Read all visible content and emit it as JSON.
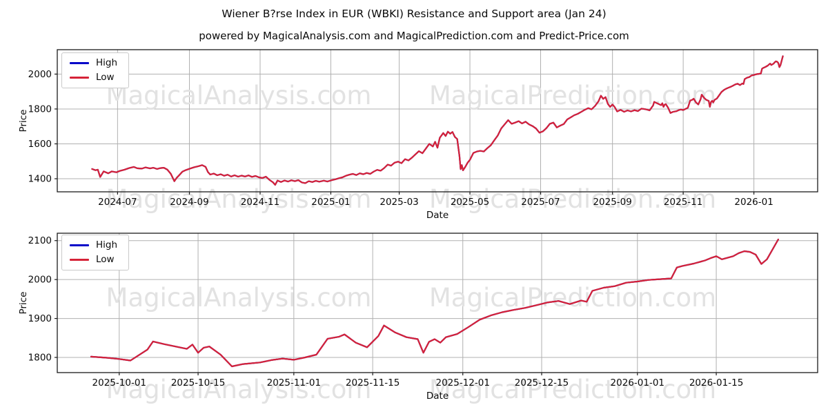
{
  "figure": {
    "title": "Wiener B?rse Index in EUR (WBKI) Resistance and Support area (Jan 24)",
    "subtitle": "powered by MagicalAnalysis.com and MagicalPrediction.com and Predict-Price.com",
    "background": "#ffffff"
  },
  "legend": {
    "high_label": "High",
    "low_label": "Low"
  },
  "colors": {
    "high": "#0202c8",
    "low": "#d62237",
    "grid": "#b0b0b0",
    "spine": "#1a1a1a",
    "tick_text": "#0a0a0a",
    "watermark": "#e2e2e2"
  },
  "watermarks": [
    "MagicalAnalysis.com",
    "MagicalPrediction.com"
  ],
  "chart_data": [
    {
      "type": "line",
      "xlabel": "Date",
      "ylabel": "Price",
      "legend_position": "upper-left",
      "grid": true,
      "series": [
        {
          "name": "High",
          "color_key": "high"
        },
        {
          "name": "Low",
          "color_key": "low"
        }
      ],
      "note": "High and Low lines overlap almost exactly; the red Low line is drawn on top so only red is visible",
      "xlim": [
        "2024-05-10",
        "2026-02-25"
      ],
      "ylim": [
        1325,
        2140
      ],
      "yticks": [
        1400,
        1600,
        1800,
        2000
      ],
      "xticks": [
        {
          "label": "2024-07",
          "date": "2024-07-01"
        },
        {
          "label": "2024-09",
          "date": "2024-09-01"
        },
        {
          "label": "2024-11",
          "date": "2024-11-01"
        },
        {
          "label": "2025-01",
          "date": "2025-01-01"
        },
        {
          "label": "2025-03",
          "date": "2025-03-01"
        },
        {
          "label": "2025-05",
          "date": "2025-05-01"
        },
        {
          "label": "2025-07",
          "date": "2025-07-01"
        },
        {
          "label": "2025-09",
          "date": "2025-09-01"
        },
        {
          "label": "2025-11",
          "date": "2025-11-01"
        },
        {
          "label": "2026-01",
          "date": "2026-01-01"
        }
      ],
      "points": [
        [
          "2024-06-09",
          1456
        ],
        [
          "2024-06-12",
          1449
        ],
        [
          "2024-06-14",
          1452
        ],
        [
          "2024-06-16",
          1410
        ],
        [
          "2024-06-19",
          1442
        ],
        [
          "2024-06-23",
          1431
        ],
        [
          "2024-06-26",
          1442
        ],
        [
          "2024-06-30",
          1437
        ],
        [
          "2024-07-03",
          1445
        ],
        [
          "2024-07-07",
          1452
        ],
        [
          "2024-07-11",
          1461
        ],
        [
          "2024-07-15",
          1468
        ],
        [
          "2024-07-18",
          1460
        ],
        [
          "2024-07-22",
          1458
        ],
        [
          "2024-07-25",
          1465
        ],
        [
          "2024-07-29",
          1459
        ],
        [
          "2024-08-01",
          1463
        ],
        [
          "2024-08-04",
          1456
        ],
        [
          "2024-08-07",
          1461
        ],
        [
          "2024-08-10",
          1463
        ],
        [
          "2024-08-13",
          1452
        ],
        [
          "2024-08-16",
          1428
        ],
        [
          "2024-08-19",
          1386
        ],
        [
          "2024-08-21",
          1405
        ],
        [
          "2024-08-23",
          1419
        ],
        [
          "2024-08-26",
          1441
        ],
        [
          "2024-08-29",
          1450
        ],
        [
          "2024-09-02",
          1459
        ],
        [
          "2024-09-05",
          1466
        ],
        [
          "2024-09-09",
          1472
        ],
        [
          "2024-09-12",
          1478
        ],
        [
          "2024-09-15",
          1468
        ],
        [
          "2024-09-17",
          1438
        ],
        [
          "2024-09-19",
          1424
        ],
        [
          "2024-09-22",
          1430
        ],
        [
          "2024-09-25",
          1420
        ],
        [
          "2024-09-28",
          1426
        ],
        [
          "2024-10-01",
          1417
        ],
        [
          "2024-10-04",
          1423
        ],
        [
          "2024-10-07",
          1413
        ],
        [
          "2024-10-10",
          1420
        ],
        [
          "2024-10-13",
          1412
        ],
        [
          "2024-10-16",
          1418
        ],
        [
          "2024-10-19",
          1413
        ],
        [
          "2024-10-22",
          1419
        ],
        [
          "2024-10-25",
          1411
        ],
        [
          "2024-10-28",
          1416
        ],
        [
          "2024-10-31",
          1408
        ],
        [
          "2024-11-03",
          1404
        ],
        [
          "2024-11-06",
          1412
        ],
        [
          "2024-11-09",
          1394
        ],
        [
          "2024-11-12",
          1380
        ],
        [
          "2024-11-14",
          1365
        ],
        [
          "2024-11-16",
          1390
        ],
        [
          "2024-11-19",
          1381
        ],
        [
          "2024-11-22",
          1390
        ],
        [
          "2024-11-25",
          1384
        ],
        [
          "2024-11-28",
          1391
        ],
        [
          "2024-12-01",
          1386
        ],
        [
          "2024-12-04",
          1392
        ],
        [
          "2024-12-07",
          1379
        ],
        [
          "2024-12-10",
          1375
        ],
        [
          "2024-12-13",
          1386
        ],
        [
          "2024-12-16",
          1381
        ],
        [
          "2024-12-19",
          1388
        ],
        [
          "2024-12-22",
          1383
        ],
        [
          "2024-12-26",
          1389
        ],
        [
          "2024-12-29",
          1384
        ],
        [
          "2025-01-02",
          1392
        ],
        [
          "2025-01-05",
          1397
        ],
        [
          "2025-01-08",
          1403
        ],
        [
          "2025-01-11",
          1408
        ],
        [
          "2025-01-14",
          1417
        ],
        [
          "2025-01-17",
          1423
        ],
        [
          "2025-01-20",
          1428
        ],
        [
          "2025-01-23",
          1421
        ],
        [
          "2025-01-26",
          1431
        ],
        [
          "2025-01-29",
          1426
        ],
        [
          "2025-02-01",
          1433
        ],
        [
          "2025-02-04",
          1428
        ],
        [
          "2025-02-07",
          1441
        ],
        [
          "2025-02-10",
          1451
        ],
        [
          "2025-02-13",
          1446
        ],
        [
          "2025-02-16",
          1461
        ],
        [
          "2025-02-19",
          1481
        ],
        [
          "2025-02-22",
          1475
        ],
        [
          "2025-02-25",
          1492
        ],
        [
          "2025-02-28",
          1498
        ],
        [
          "2025-03-03",
          1489
        ],
        [
          "2025-03-06",
          1512
        ],
        [
          "2025-03-09",
          1505
        ],
        [
          "2025-03-12",
          1521
        ],
        [
          "2025-03-15",
          1540
        ],
        [
          "2025-03-18",
          1558
        ],
        [
          "2025-03-21",
          1546
        ],
        [
          "2025-03-24",
          1573
        ],
        [
          "2025-03-27",
          1600
        ],
        [
          "2025-03-30",
          1585
        ],
        [
          "2025-04-01",
          1612
        ],
        [
          "2025-04-03",
          1578
        ],
        [
          "2025-04-05",
          1635
        ],
        [
          "2025-04-08",
          1662
        ],
        [
          "2025-04-10",
          1645
        ],
        [
          "2025-04-12",
          1670
        ],
        [
          "2025-04-14",
          1658
        ],
        [
          "2025-04-16",
          1668
        ],
        [
          "2025-04-18",
          1640
        ],
        [
          "2025-04-20",
          1628
        ],
        [
          "2025-04-22",
          1530
        ],
        [
          "2025-04-23",
          1455
        ],
        [
          "2025-04-24",
          1478
        ],
        [
          "2025-04-25",
          1448
        ],
        [
          "2025-04-27",
          1468
        ],
        [
          "2025-04-29",
          1492
        ],
        [
          "2025-05-01",
          1508
        ],
        [
          "2025-05-04",
          1548
        ],
        [
          "2025-05-07",
          1556
        ],
        [
          "2025-05-10",
          1560
        ],
        [
          "2025-05-13",
          1556
        ],
        [
          "2025-05-16",
          1575
        ],
        [
          "2025-05-19",
          1592
        ],
        [
          "2025-05-22",
          1620
        ],
        [
          "2025-05-25",
          1648
        ],
        [
          "2025-05-28",
          1688
        ],
        [
          "2025-05-31",
          1712
        ],
        [
          "2025-06-03",
          1736
        ],
        [
          "2025-06-06",
          1715
        ],
        [
          "2025-06-09",
          1722
        ],
        [
          "2025-06-12",
          1730
        ],
        [
          "2025-06-15",
          1717
        ],
        [
          "2025-06-18",
          1727
        ],
        [
          "2025-06-21",
          1712
        ],
        [
          "2025-06-24",
          1702
        ],
        [
          "2025-06-27",
          1688
        ],
        [
          "2025-06-30",
          1664
        ],
        [
          "2025-07-03",
          1672
        ],
        [
          "2025-07-06",
          1690
        ],
        [
          "2025-07-09",
          1715
        ],
        [
          "2025-07-12",
          1722
        ],
        [
          "2025-07-15",
          1694
        ],
        [
          "2025-07-18",
          1705
        ],
        [
          "2025-07-21",
          1714
        ],
        [
          "2025-07-24",
          1740
        ],
        [
          "2025-07-27",
          1752
        ],
        [
          "2025-07-30",
          1764
        ],
        [
          "2025-08-02",
          1772
        ],
        [
          "2025-08-05",
          1783
        ],
        [
          "2025-08-08",
          1795
        ],
        [
          "2025-08-11",
          1805
        ],
        [
          "2025-08-14",
          1798
        ],
        [
          "2025-08-17",
          1818
        ],
        [
          "2025-08-20",
          1845
        ],
        [
          "2025-08-22",
          1876
        ],
        [
          "2025-08-24",
          1858
        ],
        [
          "2025-08-26",
          1868
        ],
        [
          "2025-08-28",
          1830
        ],
        [
          "2025-08-30",
          1812
        ],
        [
          "2025-09-01",
          1826
        ],
        [
          "2025-09-03",
          1810
        ],
        [
          "2025-09-05",
          1786
        ],
        [
          "2025-09-08",
          1795
        ],
        [
          "2025-09-11",
          1784
        ],
        [
          "2025-09-14",
          1792
        ],
        [
          "2025-09-17",
          1786
        ],
        [
          "2025-09-20",
          1793
        ],
        [
          "2025-09-23",
          1788
        ],
        [
          "2025-09-26",
          1802
        ],
        [
          "2025-09-29",
          1799
        ],
        [
          "2025-10-01",
          1796
        ],
        [
          "2025-10-03",
          1792
        ],
        [
          "2025-10-06",
          1820
        ],
        [
          "2025-10-07",
          1841
        ],
        [
          "2025-10-09",
          1834
        ],
        [
          "2025-10-11",
          1828
        ],
        [
          "2025-10-13",
          1822
        ],
        [
          "2025-10-14",
          1833
        ],
        [
          "2025-10-15",
          1812
        ],
        [
          "2025-10-16",
          1825
        ],
        [
          "2025-10-17",
          1828
        ],
        [
          "2025-10-19",
          1807
        ],
        [
          "2025-10-21",
          1777
        ],
        [
          "2025-10-23",
          1783
        ],
        [
          "2025-10-26",
          1787
        ],
        [
          "2025-10-28",
          1793
        ],
        [
          "2025-10-30",
          1797
        ],
        [
          "2025-11-01",
          1794
        ],
        [
          "2025-11-03",
          1800
        ],
        [
          "2025-11-05",
          1807
        ],
        [
          "2025-11-07",
          1848
        ],
        [
          "2025-11-09",
          1853
        ],
        [
          "2025-11-10",
          1859
        ],
        [
          "2025-11-12",
          1838
        ],
        [
          "2025-11-14",
          1826
        ],
        [
          "2025-11-16",
          1855
        ],
        [
          "2025-11-17",
          1882
        ],
        [
          "2025-11-19",
          1864
        ],
        [
          "2025-11-21",
          1852
        ],
        [
          "2025-11-23",
          1847
        ],
        [
          "2025-11-24",
          1812
        ],
        [
          "2025-11-25",
          1840
        ],
        [
          "2025-11-26",
          1847
        ],
        [
          "2025-11-27",
          1838
        ],
        [
          "2025-11-28",
          1852
        ],
        [
          "2025-11-30",
          1860
        ],
        [
          "2025-12-02",
          1878
        ],
        [
          "2025-12-04",
          1897
        ],
        [
          "2025-12-06",
          1908
        ],
        [
          "2025-12-08",
          1916
        ],
        [
          "2025-12-10",
          1922
        ],
        [
          "2025-12-12",
          1927
        ],
        [
          "2025-12-14",
          1934
        ],
        [
          "2025-12-16",
          1941
        ],
        [
          "2025-12-18",
          1945
        ],
        [
          "2025-12-20",
          1937
        ],
        [
          "2025-12-22",
          1946
        ],
        [
          "2025-12-23",
          1943
        ],
        [
          "2025-12-24",
          1971
        ],
        [
          "2025-12-26",
          1979
        ],
        [
          "2025-12-28",
          1983
        ],
        [
          "2025-12-30",
          1992
        ],
        [
          "2026-01-01",
          1995
        ],
        [
          "2026-01-03",
          1999
        ],
        [
          "2026-01-05",
          2001
        ],
        [
          "2026-01-07",
          2003
        ],
        [
          "2026-01-08",
          2031
        ],
        [
          "2026-01-09",
          2035
        ],
        [
          "2026-01-11",
          2041
        ],
        [
          "2026-01-13",
          2049
        ],
        [
          "2026-01-14",
          2055
        ],
        [
          "2026-01-15",
          2060
        ],
        [
          "2026-01-16",
          2052
        ],
        [
          "2026-01-18",
          2060
        ],
        [
          "2026-01-19",
          2068
        ],
        [
          "2026-01-20",
          2073
        ],
        [
          "2026-01-21",
          2071
        ],
        [
          "2026-01-22",
          2064
        ],
        [
          "2026-01-23",
          2040
        ],
        [
          "2026-01-24",
          2052
        ],
        [
          "2026-01-26",
          2103
        ]
      ]
    },
    {
      "type": "line",
      "xlabel": "Date",
      "ylabel": "Price",
      "legend_position": "upper-left",
      "grid": true,
      "series": [
        {
          "name": "High",
          "color_key": "high"
        },
        {
          "name": "Low",
          "color_key": "low"
        }
      ],
      "note": "Zoomed view of the most recent months of the same series shown in the first chart",
      "points_source": "chart_data[0].points",
      "start_date": "2025-09-26",
      "xlim": [
        "2025-09-20",
        "2026-02-02"
      ],
      "ylim": [
        1761,
        2119
      ],
      "yticks": [
        1800,
        1900,
        2000,
        2100
      ],
      "xticks": [
        {
          "label": "2025-10-01",
          "date": "2025-10-01"
        },
        {
          "label": "2025-10-15",
          "date": "2025-10-15"
        },
        {
          "label": "2025-11-01",
          "date": "2025-11-01"
        },
        {
          "label": "2025-11-15",
          "date": "2025-11-15"
        },
        {
          "label": "2025-12-01",
          "date": "2025-12-01"
        },
        {
          "label": "2025-12-15",
          "date": "2025-12-15"
        },
        {
          "label": "2026-01-01",
          "date": "2026-01-01"
        },
        {
          "label": "2026-01-15",
          "date": "2026-01-15"
        }
      ]
    }
  ]
}
